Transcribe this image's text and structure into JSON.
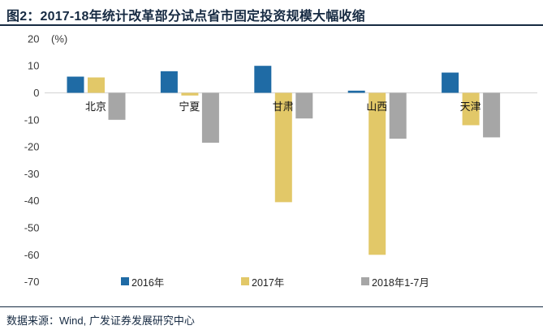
{
  "header": {
    "title": "图2：2017-18年统计改革部分试点省市固定投资规模大幅收缩"
  },
  "footer": {
    "source": "数据来源：Wind,  广发证券发展研究中心"
  },
  "chart_data": {
    "type": "bar",
    "title": "2017-18年统计改革部分试点省市固定投资规模大幅收缩",
    "unit_label": "(%)",
    "xlabel": "",
    "ylabel": "(%)",
    "categories": [
      "北京",
      "宁夏",
      "甘肃",
      "山西",
      "天津"
    ],
    "series": [
      {
        "name": "2016年",
        "color": "#1F6BA5",
        "values": [
          6.0,
          8.0,
          10.0,
          0.8,
          7.5
        ]
      },
      {
        "name": "2017年",
        "color": "#E2C868",
        "values": [
          5.7,
          -1.0,
          -40.5,
          -60.0,
          -12.0
        ]
      },
      {
        "name": "2018年1-7月",
        "color": "#A6A6A6",
        "values": [
          -10.0,
          -18.5,
          -9.5,
          -17.0,
          -16.5
        ]
      }
    ],
    "ylim": [
      -70,
      20
    ],
    "yticks": [
      20,
      10,
      0,
      -10,
      -20,
      -30,
      -40,
      -50,
      -60,
      -70
    ],
    "grid": false,
    "zero_line_color": "#D9D9D9",
    "legend_position": "bottom"
  }
}
